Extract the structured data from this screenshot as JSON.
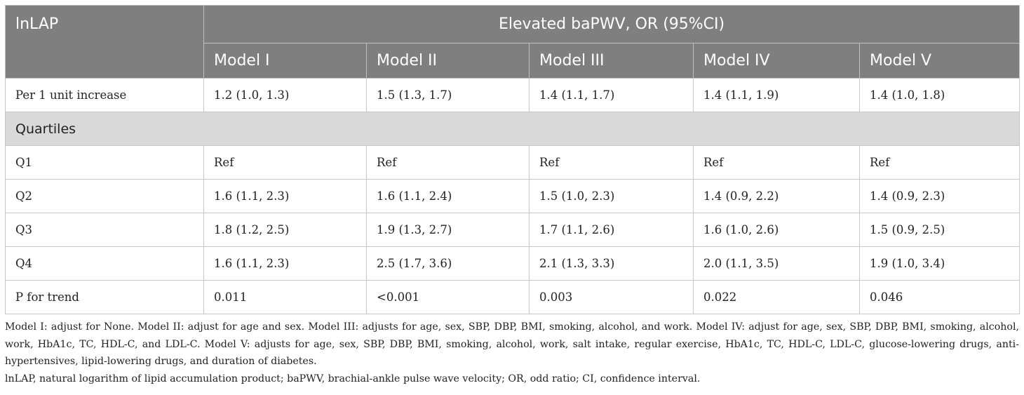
{
  "table": {
    "stub_header": "lnLAP",
    "group_header": "Elevated baPWV, OR (95%CI)",
    "model_headers": [
      "Model I",
      "Model II",
      "Model III",
      "Model IV",
      "Model V"
    ],
    "rows": [
      {
        "label": "Per 1 unit increase",
        "values": [
          "1.2 (1.0, 1.3)",
          "1.5 (1.3, 1.7)",
          "1.4 (1.1, 1.7)",
          "1.4 (1.1, 1.9)",
          "1.4 (1.0, 1.8)"
        ]
      },
      {
        "label": "Quartiles",
        "section": true
      },
      {
        "label": "Q1",
        "values": [
          "Ref",
          "Ref",
          "Ref",
          "Ref",
          "Ref"
        ]
      },
      {
        "label": "Q2",
        "values": [
          "1.6 (1.1, 2.3)",
          "1.6 (1.1, 2.4)",
          "1.5 (1.0, 2.3)",
          "1.4 (0.9, 2.2)",
          "1.4 (0.9, 2.3)"
        ]
      },
      {
        "label": "Q3",
        "values": [
          "1.8 (1.2, 2.5)",
          "1.9 (1.3, 2.7)",
          "1.7 (1.1, 2.6)",
          "1.6 (1.0, 2.6)",
          "1.5 (0.9, 2.5)"
        ]
      },
      {
        "label": "Q4",
        "values": [
          "1.6 (1.1, 2.3)",
          "2.5 (1.7, 3.6)",
          "2.1 (1.3, 3.3)",
          "2.0 (1.1, 3.5)",
          "1.9 (1.0, 3.4)"
        ]
      },
      {
        "label": "P for trend",
        "values": [
          "0.011",
          "<0.001",
          "0.003",
          "0.022",
          "0.046"
        ]
      }
    ]
  },
  "notes": [
    "Model I: adjust for None. Model II: adjust for age and sex. Model III: adjusts for age, sex, SBP, DBP, BMI, smoking, alcohol, and work. Model IV: adjust for age, sex, SBP, DBP, BMI, smoking, alcohol, work, HbA1c, TC, HDL-C, and LDL-C. Model V: adjusts for age, sex, SBP, DBP, BMI, smoking, alcohol, work, salt intake, regular exercise, HbA1c, TC, HDL-C, LDL-C, glucose-lowering drugs, anti-hypertensives, lipid-lowering drugs, and duration of diabetes.",
    "lnLAP, natural logarithm of lipid accumulation product; baPWV, brachial-ankle pulse wave velocity; OR, odd ratio; CI, confidence interval."
  ],
  "colors": {
    "header_bg": "#7f7f7f",
    "section_bg": "#d9d9d9"
  }
}
